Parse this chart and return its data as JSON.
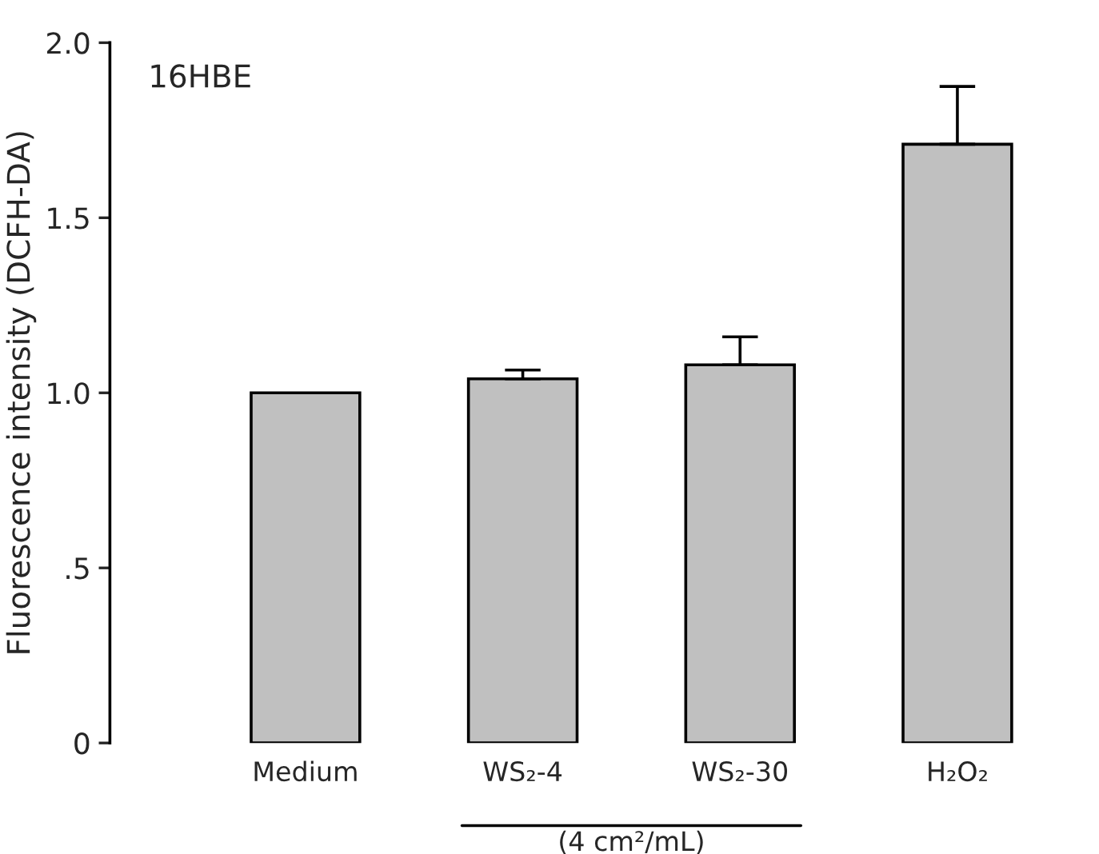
{
  "chart_data": {
    "type": "bar",
    "ylabel": "Fluorescence intensity (DCFH-DA)",
    "categories": [
      "Medium",
      "WS₂-4",
      "WS₂-30",
      "H₂O₂"
    ],
    "values": [
      1.0,
      1.04,
      1.08,
      1.71
    ],
    "errors": [
      null,
      [
        1.04,
        1.065
      ],
      [
        1.08,
        1.16
      ],
      [
        1.71,
        1.875
      ]
    ],
    "color": "#c0c0c0",
    "ylim": [
      0,
      2.0
    ],
    "yticks": [
      {
        "value": 0,
        "label": "0"
      },
      {
        "value": 0.5,
        "label": ".5"
      },
      {
        "value": 1.0,
        "label": "1.0"
      },
      {
        "value": 1.5,
        "label": "1.5"
      },
      {
        "value": 2.0,
        "label": "2.0"
      }
    ],
    "annotations": [
      "16HBE",
      "(4 cm²/mL)"
    ],
    "grid": false,
    "legend": false
  }
}
